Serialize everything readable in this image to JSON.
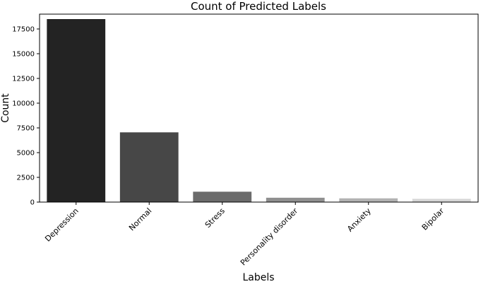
{
  "chart_data": {
    "type": "bar",
    "title": "Count of Predicted Labels",
    "xlabel": "Labels",
    "ylabel": "Count",
    "categories": [
      "Depression",
      "Normal",
      "Stress",
      "Personality disorder",
      "Anxiety",
      "Bipolar"
    ],
    "values": [
      18500,
      7050,
      1050,
      440,
      380,
      330
    ],
    "colors": [
      "#232323",
      "#474747",
      "#6b6b6b",
      "#8f8f8f",
      "#b2b2b2",
      "#d6d6d6"
    ],
    "ylim": [
      0,
      19000
    ],
    "yticks": [
      0,
      2500,
      5000,
      7500,
      10000,
      12500,
      15000,
      17500
    ],
    "ytick_labels": [
      "0",
      "2500",
      "5000",
      "7500",
      "10000",
      "12500",
      "15000",
      "17500"
    ],
    "grid": false,
    "legend": "none"
  }
}
